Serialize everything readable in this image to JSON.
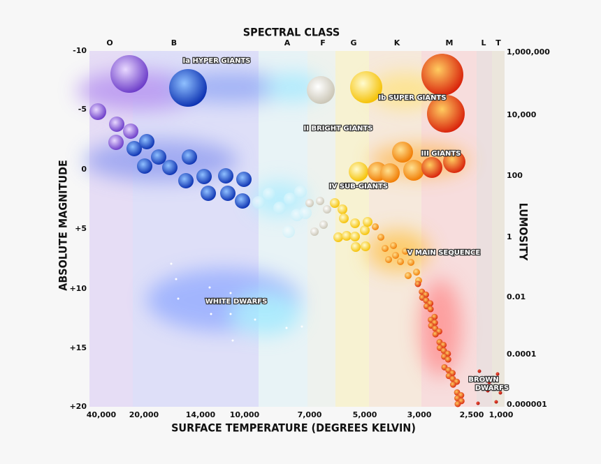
{
  "header": {
    "title": "SPECTRAL CLASS"
  },
  "spectral_classes": [
    "O",
    "B",
    "A",
    "F",
    "G",
    "K",
    "M",
    "L",
    "T"
  ],
  "left_axis": {
    "title": "ABSOLUTE MAGNITUDE",
    "ticks": [
      "-10",
      "-5",
      "0",
      "+5",
      "+10",
      "+15",
      "+20"
    ]
  },
  "right_axis": {
    "title": "LUMOSITY",
    "ticks": [
      "1,000,000",
      "10,000",
      "100",
      "1",
      "0.01",
      "0.0001",
      "0.000001"
    ]
  },
  "bottom_axis": {
    "title": "SURFACE TEMPERATURE (DEGREES KELVIN)",
    "ticks": [
      "40,000",
      "20,000",
      "14,000",
      "10,000",
      "7,000",
      "5,000",
      "3,000",
      "2,500",
      "1,000"
    ]
  },
  "regions": {
    "hyper_giants": "Ia HYPER GIANTS",
    "super_giants": "Ib SUPER GIANTS",
    "bright_giants": "II BRIGHT GIANTS",
    "giants": "III GIANTS",
    "sub_giants": "IV SUB-GIANTS",
    "main_sequence": "V MAIN SEQUENCE",
    "white_dwarfs": "WHITE DWARFS",
    "brown_dwarfs": [
      "BROWN",
      "DWARFS"
    ]
  }
}
